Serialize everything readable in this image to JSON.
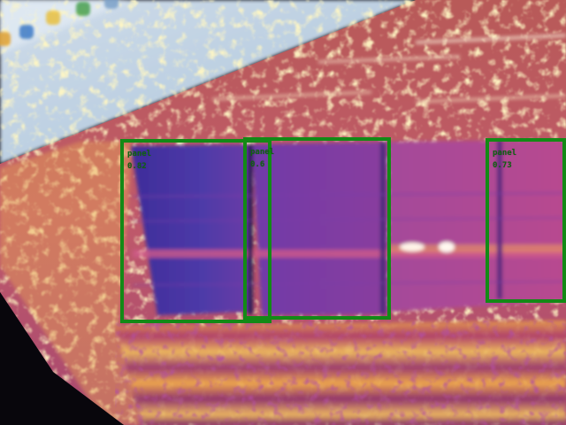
{
  "detections": [
    {
      "label": "panel",
      "score": "0.82"
    },
    {
      "label": "panel",
      "score": "0.6"
    },
    {
      "label": "panel",
      "score": "0.73"
    }
  ],
  "colors": {
    "box_stroke": "#138a16",
    "label_text": "#0f6412",
    "screen_bg": "#d8e4ef",
    "thermal_hot": "#f4a838",
    "thermal_mid": "#c2486c",
    "thermal_cold": "#4a2c9c"
  },
  "desktop_icons": [
    "folder-icon",
    "browser-icon",
    "chrome-icon",
    "app-icon",
    "app-icon"
  ]
}
